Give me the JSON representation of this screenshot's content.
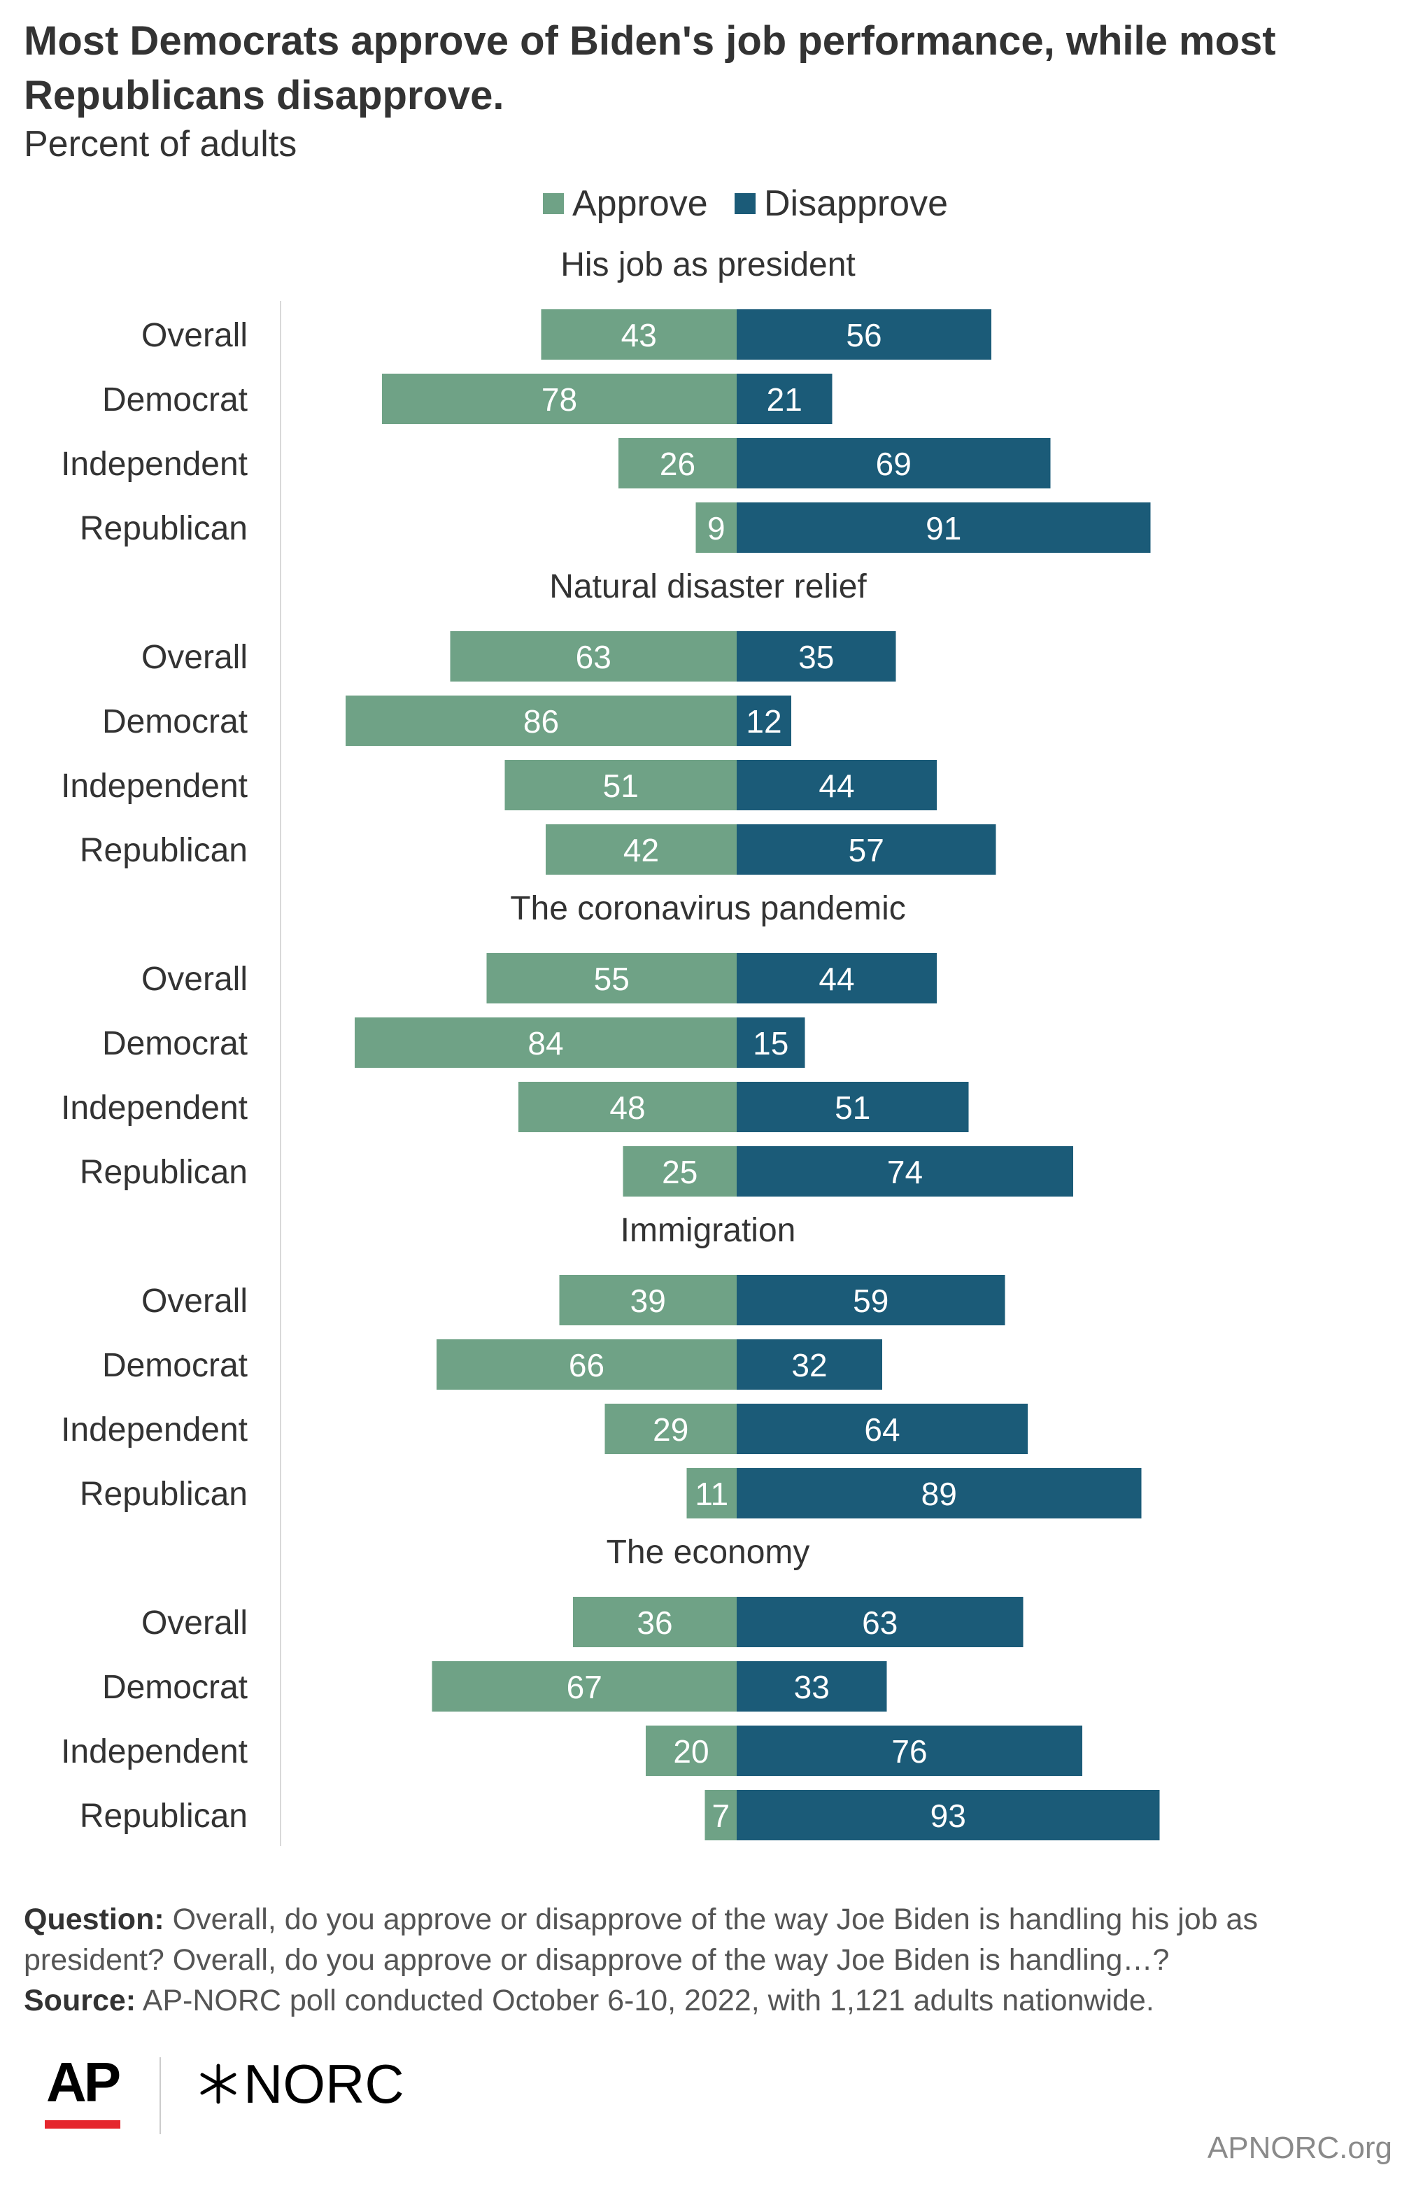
{
  "title": "Most Democrats approve of Biden's job performance, while most Republicans disapprove.",
  "subtitle": "Percent of adults",
  "colors": {
    "approve": "#6fa286",
    "disapprove": "#1b5b78"
  },
  "chart_data": {
    "type": "bar",
    "orientation": "horizontal-diverging",
    "legend": [
      "Approve",
      "Disapprove"
    ],
    "legend_placement": "top-center",
    "categories": [
      "Overall",
      "Democrat",
      "Independent",
      "Republican"
    ],
    "xlim": [
      -100,
      100
    ],
    "grid": false,
    "panels": [
      {
        "title": "His job as president",
        "series": [
          {
            "name": "Approve",
            "values": [
              43,
              78,
              26,
              9
            ]
          },
          {
            "name": "Disapprove",
            "values": [
              56,
              21,
              69,
              91
            ]
          }
        ]
      },
      {
        "title": "Natural disaster relief",
        "series": [
          {
            "name": "Approve",
            "values": [
              63,
              86,
              51,
              42
            ]
          },
          {
            "name": "Disapprove",
            "values": [
              35,
              12,
              44,
              57
            ]
          }
        ]
      },
      {
        "title": "The coronavirus pandemic",
        "series": [
          {
            "name": "Approve",
            "values": [
              55,
              84,
              48,
              25
            ]
          },
          {
            "name": "Disapprove",
            "values": [
              44,
              15,
              51,
              74
            ]
          }
        ]
      },
      {
        "title": "Immigration",
        "series": [
          {
            "name": "Approve",
            "values": [
              39,
              66,
              29,
              11
            ]
          },
          {
            "name": "Disapprove",
            "values": [
              59,
              32,
              64,
              89
            ]
          }
        ]
      },
      {
        "title": "The economy",
        "series": [
          {
            "name": "Approve",
            "values": [
              36,
              67,
              20,
              7
            ]
          },
          {
            "name": "Disapprove",
            "values": [
              63,
              33,
              76,
              93
            ]
          }
        ]
      }
    ]
  },
  "footer": {
    "question_label": "Question:",
    "question_text": "Overall, do you approve or disapprove of the way Joe Biden is handling his job as president? Overall, do you approve or disapprove of the way Joe Biden is handling…?",
    "source_label": "Source:",
    "source_text": "AP-NORC poll conducted October 6-10, 2022, with 1,121 adults nationwide."
  },
  "logos": {
    "ap": "AP",
    "norc": "NORC",
    "norc_mark": "star-mark-icon"
  },
  "site": "APNORC.org"
}
